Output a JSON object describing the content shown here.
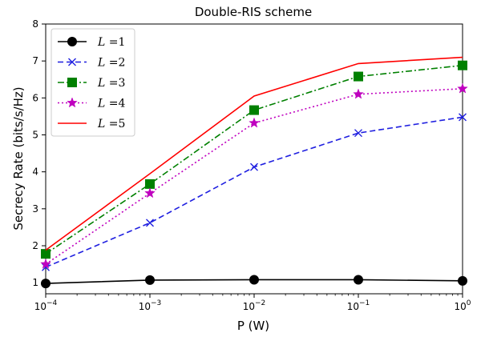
{
  "chart_data": {
    "type": "line",
    "title": "Double-RIS scheme",
    "xlabel": "P (W)",
    "ylabel": "Secrecy Rate (bits/s/Hz)",
    "xscale": "log",
    "xlim": [
      0.0001,
      1
    ],
    "ylim": [
      0.7,
      8
    ],
    "x": [
      0.0001,
      0.001,
      0.01,
      0.1,
      1
    ],
    "x_tick_bases": [
      "10",
      "10",
      "10",
      "10",
      "10"
    ],
    "x_tick_exponents": [
      "−4",
      "−3",
      "−2",
      "−1",
      "0"
    ],
    "y_ticks": [
      "1",
      "2",
      "3",
      "4",
      "5",
      "6",
      "7",
      "8"
    ],
    "y_tick_values": [
      1,
      2,
      3,
      4,
      5,
      6,
      7,
      8
    ],
    "legend_position": "top-left",
    "grid": false,
    "series": [
      {
        "name": "L = 1",
        "symbol": "L",
        "eq": " =1",
        "color": "#000000",
        "dash": "solid",
        "marker": "circle",
        "values": [
          0.98,
          1.07,
          1.08,
          1.08,
          1.05
        ]
      },
      {
        "name": "L = 2",
        "symbol": "L",
        "eq": " =2",
        "color": "#1f1fe0",
        "dash": "dashed",
        "marker": "x",
        "values": [
          1.42,
          2.62,
          4.13,
          5.05,
          5.48
        ]
      },
      {
        "name": "L = 3",
        "symbol": "L",
        "eq": " =3",
        "color": "#008000",
        "dash": "dashdot",
        "marker": "square",
        "values": [
          1.78,
          3.67,
          5.67,
          6.58,
          6.88
        ]
      },
      {
        "name": "L = 4",
        "symbol": "L",
        "eq": " =4",
        "color": "#bf00bf",
        "dash": "dotted",
        "marker": "star",
        "values": [
          1.5,
          3.42,
          5.32,
          6.1,
          6.25
        ]
      },
      {
        "name": "L = 5",
        "symbol": "L",
        "eq": " =5",
        "color": "#ff0000",
        "dash": "solid",
        "marker": "none",
        "values": [
          1.88,
          3.95,
          6.05,
          6.93,
          7.1
        ]
      }
    ]
  }
}
